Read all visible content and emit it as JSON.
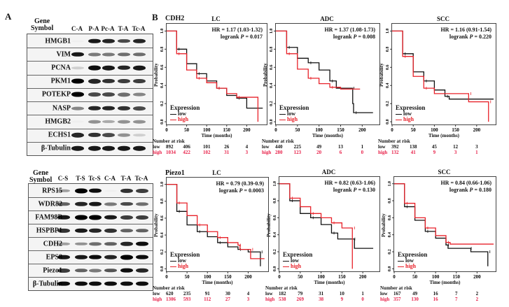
{
  "panel_a": {
    "letter": "A",
    "blots": [
      {
        "header_line1": "Gene",
        "header_line2": "Symbol",
        "lanes": [
          "C-A",
          "P-A",
          "Pc-A",
          "T-A",
          "Tc-A"
        ],
        "rows": [
          {
            "gene": "HMGB1",
            "bands": [
              0,
              0.9,
              0.85,
              0.7,
              0.85
            ]
          },
          {
            "gene": "VIM",
            "bands": [
              0.9,
              0.5,
              0.5,
              0.55,
              0.55
            ]
          },
          {
            "gene": "PCNA",
            "bands": [
              0.15,
              0.95,
              0.9,
              0.85,
              0.9
            ]
          },
          {
            "gene": "PKM1",
            "bands": [
              1,
              0.85,
              0.8,
              0.75,
              0.75
            ]
          },
          {
            "gene": "POTEKP",
            "bands": [
              1,
              0.7,
              0.7,
              0.55,
              0.45
            ]
          },
          {
            "gene": "NASP",
            "bands": [
              0.45,
              0.85,
              0.85,
              0.8,
              0.7
            ]
          },
          {
            "gene": "HMGB2",
            "bands": [
              0,
              0.4,
              0.3,
              0.4,
              0.4
            ]
          },
          {
            "gene": "ECHS1",
            "bands": [
              0.85,
              0.8,
              0.7,
              0.4,
              0.15
            ]
          },
          {
            "gene": "β-Tubulin",
            "bands": [
              0.9,
              0.9,
              0.9,
              0.9,
              0.9
            ]
          }
        ]
      },
      {
        "header_line1": "Gene",
        "header_line2": "Symbol",
        "lanes": [
          "C-S",
          "T-S",
          "Tc-S",
          "C-A",
          "T-A",
          "Tc-A"
        ],
        "rows": [
          {
            "gene": "RPS15",
            "bands": [
              0.35,
              1,
              0.95,
              0,
              0.8,
              0.75
            ]
          },
          {
            "gene": "WDR82",
            "bands": [
              0.6,
              0.85,
              0.9,
              0.5,
              0.7,
              0.55
            ]
          },
          {
            "gene": "FAM98B",
            "bands": [
              0.9,
              1,
              1,
              0.9,
              0.75,
              0.75
            ]
          },
          {
            "gene": "HSPBP1",
            "bands": [
              0.8,
              0.9,
              0.85,
              0.8,
              0.6,
              0.6
            ]
          },
          {
            "gene": "CDH2",
            "bands": [
              0.35,
              0.4,
              0.55,
              0.6,
              0.85,
              0.95
            ]
          },
          {
            "gene": "EPS8",
            "bands": [
              0.9,
              0.9,
              0.95,
              0.85,
              1,
              0.95
            ]
          },
          {
            "gene": "Piezo1",
            "bands": [
              0.75,
              0.6,
              0.5,
              0.65,
              0.95,
              0.85
            ]
          },
          {
            "gene": "β-Tubulin",
            "bands": [
              0.95,
              0.95,
              0.95,
              0.95,
              0.95,
              0.95
            ]
          }
        ]
      }
    ]
  },
  "panel_b": {
    "letter": "B",
    "row_genes": [
      "CDH2",
      "Piezo1"
    ]
  },
  "colors": {
    "low": "#111111",
    "high": "#e8222a",
    "risk_high": "#e8224a"
  },
  "chart_data": [
    {
      "type": "line",
      "title": "LC",
      "hr": "HR = 1.17 (1.03-1.32)",
      "logrank": "logrank",
      "p_symbol": "P",
      "p_value": "= 0.017",
      "xlabel": "Time (months)",
      "ylabel": "Probability",
      "xlim": [
        0,
        250
      ],
      "ylim": [
        -0.03,
        1.08
      ],
      "xticks": [
        "0",
        "50",
        "100",
        "150",
        "200"
      ],
      "yticks": [
        "0.0",
        "0.2",
        "0.4",
        "0.6",
        "0.8",
        "1.0"
      ],
      "legend_title": "Expression",
      "series": [
        {
          "name": "low",
          "points": [
            [
              0,
              1
            ],
            [
              25,
              0.8
            ],
            [
              50,
              0.64
            ],
            [
              75,
              0.53
            ],
            [
              100,
              0.45
            ],
            [
              125,
              0.37
            ],
            [
              150,
              0.29
            ],
            [
              175,
              0.26
            ],
            [
              200,
              0.15
            ],
            [
              240,
              0.15
            ]
          ]
        },
        {
          "name": "high",
          "points": [
            [
              0,
              1
            ],
            [
              25,
              0.75
            ],
            [
              50,
              0.57
            ],
            [
              75,
              0.48
            ],
            [
              100,
              0.43
            ],
            [
              125,
              0.37
            ],
            [
              150,
              0.31
            ],
            [
              175,
              0.27
            ],
            [
              227,
              0.27
            ],
            [
              228,
              0
            ]
          ]
        }
      ],
      "risk_table": {
        "title": "Number at risk",
        "rows": [
          {
            "label": "low",
            "values": [
              "892",
              "406",
              "101",
              "26",
              "4"
            ]
          },
          {
            "label": "high",
            "values": [
              "1034",
              "422",
              "102",
              "31",
              "3"
            ]
          }
        ]
      }
    },
    {
      "type": "line",
      "title": "ADC",
      "hr": "HR = 1.37 (1.08-1.73)",
      "logrank": "logrank",
      "p_symbol": "P",
      "p_value": "= 0.008",
      "xlabel": "Time (months)",
      "ylabel": "Probability",
      "xlim": [
        0,
        240
      ],
      "ylim": [
        -0.03,
        1.08
      ],
      "xticks": [
        "0",
        "50",
        "100",
        "150",
        "200"
      ],
      "yticks": [
        "0.0",
        "0.2",
        "0.4",
        "0.6",
        "0.8",
        "1.0"
      ],
      "legend_title": "Expression",
      "series": [
        {
          "name": "low",
          "points": [
            [
              0,
              1
            ],
            [
              25,
              0.82
            ],
            [
              50,
              0.7
            ],
            [
              75,
              0.65
            ],
            [
              100,
              0.57
            ],
            [
              125,
              0.45
            ],
            [
              140,
              0.37
            ],
            [
              175,
              0.37
            ],
            [
              178,
              0.2
            ],
            [
              180,
              0.1
            ],
            [
              225,
              0.1
            ]
          ]
        },
        {
          "name": "high",
          "points": [
            [
              0,
              1
            ],
            [
              25,
              0.75
            ],
            [
              50,
              0.58
            ],
            [
              75,
              0.48
            ],
            [
              100,
              0.42
            ],
            [
              125,
              0.38
            ],
            [
              150,
              0.36
            ],
            [
              195,
              0.36
            ]
          ]
        }
      ],
      "risk_table": {
        "title": "Number at risk",
        "rows": [
          {
            "label": "low",
            "values": [
              "440",
              "225",
              "49",
              "13",
              "1"
            ]
          },
          {
            "label": "high",
            "values": [
              "280",
              "123",
              "20",
              "6",
              "0"
            ]
          }
        ]
      }
    },
    {
      "type": "line",
      "title": "SCC",
      "hr": "HR = 1.16 (0.91-1.54)",
      "logrank": "logrank",
      "p_symbol": "P",
      "p_value": "= 0.220",
      "xlabel": "Time (months)",
      "ylabel": "Probability",
      "xlim": [
        0,
        245
      ],
      "ylim": [
        -0.03,
        1.08
      ],
      "xticks": [
        "0",
        "50",
        "100",
        "150",
        "200"
      ],
      "yticks": [
        "0.0",
        "0.2",
        "0.4",
        "0.6",
        "0.8",
        "1.0"
      ],
      "legend_title": "Expression",
      "series": [
        {
          "name": "low",
          "points": [
            [
              0,
              1
            ],
            [
              25,
              0.75
            ],
            [
              50,
              0.55
            ],
            [
              75,
              0.45
            ],
            [
              100,
              0.35
            ],
            [
              125,
              0.28
            ],
            [
              135,
              0.25
            ],
            [
              240,
              0.25
            ]
          ]
        },
        {
          "name": "high",
          "points": [
            [
              0,
              1
            ],
            [
              25,
              0.72
            ],
            [
              50,
              0.5
            ],
            [
              75,
              0.37
            ],
            [
              100,
              0.31
            ],
            [
              180,
              0.31
            ],
            [
              181,
              0.22
            ],
            [
              227,
              0.22
            ],
            [
              228,
              0
            ]
          ]
        }
      ],
      "risk_table": {
        "title": "Number at risk",
        "rows": [
          {
            "label": "low",
            "values": [
              "392",
              "138",
              "45",
              "12",
              "3"
            ]
          },
          {
            "label": "high",
            "values": [
              "132",
              "41",
              "9",
              "3",
              "1"
            ]
          }
        ]
      }
    },
    {
      "type": "line",
      "title": "LC",
      "hr": "HR = 0.79 (0.39-0.9)",
      "logrank": "logrank",
      "p_symbol": "P",
      "p_value": "= 0.0003",
      "xlabel": "Time (months)",
      "ylabel": "Probability",
      "xlim": [
        0,
        249
      ],
      "ylim": [
        -0.03,
        1.08
      ],
      "xticks": [
        "0",
        "50",
        "100",
        "150",
        "200"
      ],
      "yticks": [
        "0.0",
        "0.2",
        "0.4",
        "0.6",
        "0.8",
        "1.0"
      ],
      "legend_title": "Expression",
      "series": [
        {
          "name": "low",
          "points": [
            [
              0,
              1
            ],
            [
              25,
              0.68
            ],
            [
              50,
              0.52
            ],
            [
              75,
              0.44
            ],
            [
              100,
              0.38
            ],
            [
              125,
              0.31
            ],
            [
              150,
              0.26
            ],
            [
              175,
              0.23
            ],
            [
              200,
              0.2
            ],
            [
              228,
              0.2
            ],
            [
              230,
              0.03
            ]
          ]
        },
        {
          "name": "high",
          "points": [
            [
              0,
              1
            ],
            [
              25,
              0.78
            ],
            [
              50,
              0.63
            ],
            [
              75,
              0.52
            ],
            [
              100,
              0.44
            ],
            [
              125,
              0.37
            ],
            [
              150,
              0.31
            ],
            [
              175,
              0.28
            ],
            [
              180,
              0.23
            ],
            [
              205,
              0.23
            ],
            [
              206,
              0.12
            ],
            [
              240,
              0.12
            ]
          ]
        }
      ],
      "risk_table": {
        "title": "Number at risk",
        "rows": [
          {
            "label": "low",
            "values": [
              "620",
              "235",
              "91",
              "30",
              "4"
            ]
          },
          {
            "label": "high",
            "values": [
              "1306",
              "593",
              "112",
              "27",
              "3"
            ]
          }
        ]
      }
    },
    {
      "type": "line",
      "title": "ADC",
      "hr": "HR = 0.82 (0.63-1.06)",
      "logrank": "logrank",
      "p_symbol": "P",
      "p_value": "= 0.130",
      "xlabel": "Time (months)",
      "ylabel": "Probability",
      "xlim": [
        0,
        240
      ],
      "ylim": [
        -0.03,
        1.08
      ],
      "xticks": [
        "0",
        "50",
        "100",
        "150",
        "200"
      ],
      "yticks": [
        "0.0",
        "0.2",
        "0.4",
        "0.6",
        "0.8",
        "1.0"
      ],
      "legend_title": "Expression",
      "series": [
        {
          "name": "low",
          "points": [
            [
              0,
              1
            ],
            [
              25,
              0.8
            ],
            [
              50,
              0.65
            ],
            [
              75,
              0.6
            ],
            [
              100,
              0.52
            ],
            [
              125,
              0.42
            ],
            [
              140,
              0.35
            ],
            [
              175,
              0.35
            ],
            [
              180,
              0.24
            ],
            [
              225,
              0.24
            ]
          ]
        },
        {
          "name": "high",
          "points": [
            [
              0,
              1
            ],
            [
              25,
              0.83
            ],
            [
              50,
              0.73
            ],
            [
              75,
              0.65
            ],
            [
              100,
              0.6
            ],
            [
              125,
              0.54
            ],
            [
              150,
              0.48
            ],
            [
              174,
              0.48
            ],
            [
              175,
              0
            ]
          ]
        }
      ],
      "risk_table": {
        "title": "Number at risk",
        "rows": [
          {
            "label": "low",
            "values": [
              "182",
              "79",
              "31",
              "10",
              "1"
            ]
          },
          {
            "label": "high",
            "values": [
              "538",
              "269",
              "38",
              "9",
              "0"
            ]
          }
        ]
      }
    },
    {
      "type": "line",
      "title": "SCC",
      "hr": "HR = 0.84 (0.66-1.06)",
      "logrank": "logrank",
      "p_symbol": "P",
      "p_value": "= 0.180",
      "xlabel": "Time (months)",
      "ylabel": "Probability",
      "xlim": [
        0,
        245
      ],
      "ylim": [
        -0.03,
        1.08
      ],
      "xticks": [
        "0",
        "50",
        "100",
        "150",
        "200"
      ],
      "yticks": [
        "0.0",
        "0.2",
        "0.4",
        "0.6",
        "0.8",
        "1.0"
      ],
      "legend_title": "Expression",
      "series": [
        {
          "name": "low",
          "points": [
            [
              0,
              1
            ],
            [
              25,
              0.73
            ],
            [
              50,
              0.57
            ],
            [
              75,
              0.44
            ],
            [
              100,
              0.36
            ],
            [
              125,
              0.28
            ],
            [
              130,
              0.24
            ],
            [
              180,
              0.24
            ],
            [
              185,
              0.2
            ],
            [
              225,
              0.2
            ],
            [
              226,
              0.03
            ]
          ]
        },
        {
          "name": "high",
          "points": [
            [
              0,
              1
            ],
            [
              25,
              0.77
            ],
            [
              50,
              0.6
            ],
            [
              75,
              0.48
            ],
            [
              100,
              0.39
            ],
            [
              125,
              0.31
            ],
            [
              135,
              0.29
            ],
            [
              240,
              0.29
            ]
          ]
        }
      ],
      "risk_table": {
        "title": "Number at risk",
        "rows": [
          {
            "label": "low",
            "values": [
              "167",
              "49",
              "16",
              "7",
              "2"
            ]
          },
          {
            "label": "high",
            "values": [
              "357",
              "130",
              "16",
              "7",
              "2"
            ]
          }
        ]
      }
    }
  ]
}
